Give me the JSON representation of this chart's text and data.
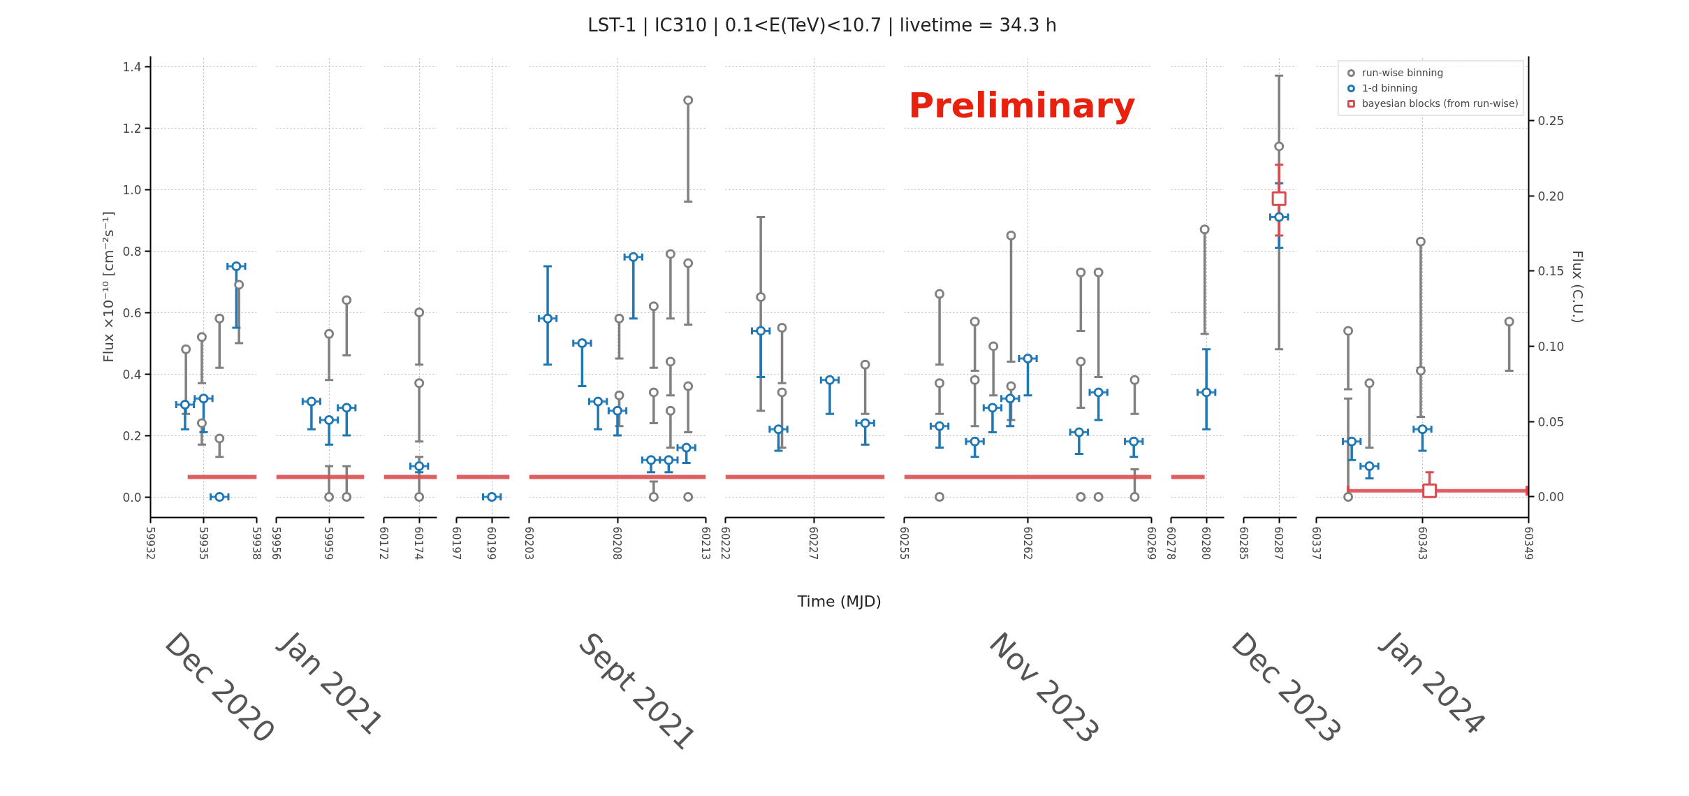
{
  "chart_data": [
    {
      "type": "scatter",
      "ylabel": "Flux ×10⁻¹⁰ [cm⁻²s⁻¹]",
      "annotations": [
        "Dec 2020"
      ],
      "xlim": [
        59932,
        59938
      ],
      "xticks": [
        59932,
        59935,
        59938
      ],
      "ylim": [
        -0.067,
        1.433
      ],
      "yticks": [
        {
          "value": 0,
          "label": "0.0"
        },
        {
          "value": 0.2,
          "label": "0.2"
        },
        {
          "value": 0.4,
          "label": "0.4"
        },
        {
          "value": 0.6,
          "label": "0.6"
        },
        {
          "value": 0.8,
          "label": "0.8"
        },
        {
          "value": 1.0,
          "label": "1.0"
        },
        {
          "value": 1.2,
          "label": "1.2"
        },
        {
          "value": 1.4,
          "label": "1.4"
        }
      ],
      "grid": true,
      "series": [
        {
          "color": "#808080",
          "marker": "circle",
          "x": [
            59934.0,
            59934.9,
            59934.9,
            59935.9,
            59935.9,
            59937.0
          ],
          "values": [
            0.48,
            0.52,
            0.24,
            0.58,
            0.19,
            0.69
          ],
          "errors": [
            [
              0.27,
              0.48
            ],
            [
              0.37,
              0.52
            ],
            [
              0.17,
              0.24
            ],
            [
              0.42,
              0.58
            ],
            [
              0.13,
              0.19
            ],
            [
              0.5,
              0.69
            ]
          ]
        },
        {
          "color": "#1f77b4",
          "marker": "circle",
          "x": [
            59933.95,
            59935.0,
            59935.9,
            59936.85
          ],
          "values": [
            0.3,
            0.32,
            0.0,
            0.75
          ],
          "errors": [
            [
              0.22,
              0.3
            ],
            [
              0.21,
              0.32
            ],
            null,
            [
              0.55,
              0.75
            ]
          ],
          "xerrors": [
            0.5,
            0.5,
            0.5,
            0.5
          ]
        },
        {
          "type": "line",
          "color": "#dc4c4e",
          "x": [
            59934.1,
            59938
          ],
          "values": [
            0.065,
            0.065
          ]
        }
      ]
    },
    {
      "type": "scatter",
      "annotations": [
        "Jan 2021"
      ],
      "xlim": [
        59956,
        59961
      ],
      "xticks": [
        59956,
        59959
      ],
      "ylim": [
        -0.067,
        1.433
      ],
      "yticks": [
        0,
        0.2,
        0.4,
        0.6,
        0.8,
        1.0,
        1.2,
        1.4
      ],
      "tick_labels": "x",
      "grid": true,
      "series": [
        {
          "color": "#808080",
          "marker": "circle",
          "x": [
            59959.0,
            59959.0,
            59960.0,
            59960.0
          ],
          "values": [
            0.53,
            0.0,
            0.64,
            0.0
          ],
          "errors": [
            [
              0.38,
              0.53
            ],
            [
              0,
              0.1
            ],
            [
              0.46,
              0.64
            ],
            [
              0,
              0.1
            ]
          ]
        },
        {
          "color": "#1f77b4",
          "marker": "circle",
          "x": [
            59958.0,
            59959.0,
            59960.0
          ],
          "values": [
            0.31,
            0.25,
            0.29
          ],
          "errors": [
            [
              0.22,
              0.31
            ],
            [
              0.17,
              0.25
            ],
            [
              0.2,
              0.29
            ]
          ],
          "xerrors": [
            0.5,
            0.5,
            0.5
          ]
        },
        {
          "type": "line",
          "color": "#dc4c4e",
          "x": [
            59956,
            59961
          ],
          "values": [
            0.065,
            0.065
          ]
        }
      ]
    },
    {
      "type": "scatter",
      "xlim": [
        60172,
        60175
      ],
      "xticks": [
        60172,
        60174
      ],
      "ylim": [
        -0.067,
        1.433
      ],
      "yticks": [
        0,
        0.2,
        0.4,
        0.6,
        0.8,
        1.0,
        1.2,
        1.4
      ],
      "tick_labels": "x",
      "grid": true,
      "series": [
        {
          "color": "#808080",
          "marker": "circle",
          "x": [
            60174.0,
            60174.0,
            60174.0
          ],
          "values": [
            0.6,
            0.37,
            0.0
          ],
          "errors": [
            [
              0.43,
              0.6
            ],
            [
              0.18,
              0.37
            ],
            [
              0,
              0.13
            ]
          ]
        },
        {
          "color": "#1f77b4",
          "marker": "circle",
          "x": [
            60174.0
          ],
          "values": [
            0.1
          ],
          "errors": [
            [
              0.08,
              0.1
            ]
          ],
          "xerrors": [
            0.5
          ]
        },
        {
          "type": "line",
          "color": "#dc4c4e",
          "x": [
            60172,
            60175
          ],
          "values": [
            0.065,
            0.065
          ]
        }
      ]
    },
    {
      "type": "scatter",
      "xlim": [
        60197,
        60200
      ],
      "xticks": [
        60197,
        60199
      ],
      "ylim": [
        -0.067,
        1.433
      ],
      "yticks": [
        0,
        0.2,
        0.4,
        0.6,
        0.8,
        1.0,
        1.2,
        1.4
      ],
      "tick_labels": "x",
      "grid": true,
      "series": [
        {
          "color": "#1f77b4",
          "marker": "circle",
          "x": [
            60199.0
          ],
          "values": [
            0.0
          ],
          "xerrors": [
            0.5
          ]
        },
        {
          "type": "line",
          "color": "#dc4c4e",
          "x": [
            60197,
            60200
          ],
          "values": [
            0.065,
            0.065
          ]
        }
      ]
    },
    {
      "type": "scatter",
      "annotations": [
        "Sept 2021"
      ],
      "xlim": [
        60203,
        60213
      ],
      "xticks": [
        60203,
        60208,
        60213
      ],
      "ylim": [
        -0.067,
        1.433
      ],
      "yticks": [
        0,
        0.2,
        0.4,
        0.6,
        0.8,
        1.0,
        1.2,
        1.4
      ],
      "tick_labels": "x",
      "grid": true,
      "series": [
        {
          "color": "#808080",
          "marker": "circle",
          "x": [
            60208.1,
            60208.1,
            60210.05,
            60210.05,
            60210.05,
            60211.0,
            60211.0,
            60211.0,
            60212.0,
            60212.0,
            60212.0,
            60212.0
          ],
          "values": [
            0.58,
            0.33,
            0.62,
            0.34,
            0.0,
            0.79,
            0.44,
            0.28,
            1.29,
            0.76,
            0.36,
            0.0
          ],
          "errors": [
            [
              0.45,
              0.58
            ],
            [
              0.23,
              0.33
            ],
            [
              0.42,
              0.62
            ],
            [
              0.24,
              0.34
            ],
            [
              0,
              0.05
            ],
            [
              0.58,
              0.79
            ],
            [
              0.33,
              0.44
            ],
            [
              0.16,
              0.28
            ],
            [
              0.96,
              1.29
            ],
            [
              0.56,
              0.76
            ],
            [
              0.21,
              0.36
            ],
            null
          ]
        },
        {
          "color": "#1f77b4",
          "marker": "circle",
          "x": [
            60204.05,
            60206.0,
            60206.9,
            60208.0,
            60208.9,
            60209.9,
            60210.9,
            60211.9
          ],
          "values": [
            0.58,
            0.5,
            0.31,
            0.28,
            0.78,
            0.12,
            0.12,
            0.16
          ],
          "errors": [
            [
              0.43,
              0.75
            ],
            [
              0.36,
              0.5
            ],
            [
              0.22,
              0.31
            ],
            [
              0.2,
              0.28
            ],
            [
              0.58,
              0.78
            ],
            [
              0.08,
              0.12
            ],
            [
              0.08,
              0.12
            ],
            [
              0.11,
              0.16
            ]
          ],
          "xerrors": [
            0.5,
            0.5,
            0.5,
            0.5,
            0.5,
            0.5,
            0.5,
            0.5
          ]
        },
        {
          "type": "line",
          "color": "#dc4c4e",
          "x": [
            60203,
            60213
          ],
          "values": [
            0.065,
            0.065
          ]
        }
      ]
    },
    {
      "type": "scatter",
      "title": "LST-1  |  IC310  |  0.1<E(TeV)<10.7  |  livetime = 34.3 h",
      "xlabel": "Time (MJD)",
      "xlim": [
        60222,
        60231
      ],
      "xticks": [
        60222,
        60227
      ],
      "ylim": [
        -0.067,
        1.433
      ],
      "yticks": [
        0,
        0.2,
        0.4,
        0.6,
        0.8,
        1.0,
        1.2,
        1.4
      ],
      "tick_labels": "x",
      "grid": true,
      "series": [
        {
          "color": "#808080",
          "marker": "circle",
          "x": [
            60224.0,
            60225.2,
            60225.2,
            60229.9
          ],
          "values": [
            0.65,
            0.55,
            0.34,
            0.43
          ],
          "errors": [
            [
              0.28,
              0.91
            ],
            [
              0.37,
              0.55
            ],
            [
              0.16,
              0.34
            ],
            [
              0.27,
              0.43
            ]
          ]
        },
        {
          "color": "#1f77b4",
          "marker": "circle",
          "x": [
            60224.0,
            60225.0,
            60227.9,
            60229.9
          ],
          "values": [
            0.54,
            0.22,
            0.38,
            0.24
          ],
          "errors": [
            [
              0.39,
              0.54
            ],
            [
              0.15,
              0.22
            ],
            [
              0.27,
              0.38
            ],
            [
              0.17,
              0.24
            ]
          ],
          "xerrors": [
            0.5,
            0.5,
            0.5,
            0.5
          ]
        },
        {
          "type": "line",
          "color": "#dc4c4e",
          "x": [
            60222,
            60231
          ],
          "values": [
            0.065,
            0.065
          ]
        }
      ]
    },
    {
      "type": "scatter",
      "annotations": [
        {
          "text": "Preliminary"
        },
        "Nov 2023"
      ],
      "xlim": [
        60255,
        60269
      ],
      "xticks": [
        60255,
        60262,
        60269
      ],
      "ylim": [
        -0.067,
        1.433
      ],
      "yticks": [
        0,
        0.2,
        0.4,
        0.6,
        0.8,
        1.0,
        1.2,
        1.4
      ],
      "tick_labels": "x",
      "grid": true,
      "series": [
        {
          "color": "#808080",
          "marker": "circle",
          "x": [
            60257.0,
            60257.0,
            60257.0,
            60259.0,
            60259.0,
            60260.05,
            60261.05,
            60261.05,
            60265.0,
            60265.0,
            60265.0,
            60266.0,
            60266.0,
            60268.05,
            60268.05
          ],
          "values": [
            0.66,
            0.37,
            0.0,
            0.57,
            0.38,
            0.49,
            0.85,
            0.36,
            0.73,
            0.44,
            0.0,
            0.73,
            0.0,
            0.38,
            0.0
          ],
          "errors": [
            [
              0.43,
              0.66
            ],
            [
              0.27,
              0.37
            ],
            null,
            [
              0.41,
              0.57
            ],
            [
              0.23,
              0.38
            ],
            [
              0.33,
              0.49
            ],
            [
              0.44,
              0.85
            ],
            [
              0.25,
              0.36
            ],
            [
              0.54,
              0.73
            ],
            [
              0.29,
              0.44
            ],
            null,
            [
              0.39,
              0.73
            ],
            null,
            [
              0.27,
              0.38
            ],
            [
              0,
              0.09
            ]
          ]
        },
        {
          "color": "#1f77b4",
          "marker": "circle",
          "x": [
            60257.0,
            60259.0,
            60260.0,
            60261.0,
            60262.0,
            60264.9,
            60266.0,
            60268.0
          ],
          "values": [
            0.23,
            0.18,
            0.29,
            0.32,
            0.45,
            0.21,
            0.34,
            0.18
          ],
          "errors": [
            [
              0.16,
              0.23
            ],
            [
              0.13,
              0.18
            ],
            [
              0.21,
              0.29
            ],
            [
              0.23,
              0.32
            ],
            [
              0.33,
              0.45
            ],
            [
              0.14,
              0.21
            ],
            [
              0.25,
              0.34
            ],
            [
              0.13,
              0.18
            ]
          ],
          "xerrors": [
            0.5,
            0.5,
            0.5,
            0.5,
            0.5,
            0.5,
            0.5,
            0.5
          ]
        },
        {
          "type": "line",
          "color": "#dc4c4e",
          "x": [
            60255,
            60269
          ],
          "values": [
            0.065,
            0.065
          ]
        }
      ]
    },
    {
      "type": "scatter",
      "xlim": [
        60278,
        60281
      ],
      "xticks": [
        60278,
        60280
      ],
      "ylim": [
        -0.067,
        1.433
      ],
      "yticks": [
        0,
        0.2,
        0.4,
        0.6,
        0.8,
        1.0,
        1.2,
        1.4
      ],
      "tick_labels": "x",
      "grid": true,
      "series": [
        {
          "color": "#808080",
          "marker": "circle",
          "x": [
            60279.9
          ],
          "values": [
            0.87
          ],
          "errors": [
            [
              0.53,
              0.87
            ]
          ]
        },
        {
          "color": "#1f77b4",
          "marker": "circle",
          "x": [
            60280.0
          ],
          "values": [
            0.34
          ],
          "errors": [
            [
              0.22,
              0.48
            ]
          ],
          "xerrors": [
            0.5
          ]
        },
        {
          "type": "line",
          "color": "#dc4c4e",
          "x": [
            60278,
            60279.9
          ],
          "values": [
            0.065,
            0.065
          ]
        }
      ]
    },
    {
      "type": "scatter",
      "annotations": [
        "Dec 2023"
      ],
      "xlim": [
        60285,
        60288
      ],
      "xticks": [
        60285,
        60287
      ],
      "ylim": [
        -0.067,
        1.433
      ],
      "yticks": [
        0,
        0.2,
        0.4,
        0.6,
        0.8,
        1.0,
        1.2,
        1.4
      ],
      "tick_labels": "x",
      "grid": true,
      "series": [
        {
          "color": "#808080",
          "marker": "circle",
          "x": [
            60287.0
          ],
          "values": [
            1.14
          ],
          "errors": [
            [
              0.48,
              1.37
            ]
          ]
        },
        {
          "color": "#1f77b4",
          "marker": "circle",
          "x": [
            60287.0
          ],
          "values": [
            0.91
          ],
          "errors": [
            [
              0.81,
              1.02
            ]
          ],
          "xerrors": [
            0.5
          ]
        },
        {
          "color": "#dc4c4e",
          "marker": "square",
          "x": [
            60287.0
          ],
          "values": [
            0.97
          ],
          "errors": [
            [
              0.85,
              1.08
            ]
          ]
        }
      ]
    },
    {
      "type": "scatter",
      "annotations": [
        "Jan 2024"
      ],
      "y2label": "Flux (C.U.)",
      "xlim": [
        60337,
        60349
      ],
      "xticks": [
        60337,
        60343,
        60349
      ],
      "ylim": [
        -0.067,
        1.433
      ],
      "yticks": [
        0,
        0.2,
        0.4,
        0.6,
        0.8,
        1.0,
        1.2,
        1.4
      ],
      "y2lim": [
        -0.0137,
        0.2926
      ],
      "y2ticks": [
        {
          "value": 0,
          "label": "0.00"
        },
        {
          "value": 0.05,
          "label": "0.05"
        },
        {
          "value": 0.1,
          "label": "0.10"
        },
        {
          "value": 0.15,
          "label": "0.15"
        },
        {
          "value": 0.2,
          "label": "0.20"
        },
        {
          "value": 0.25,
          "label": "0.25"
        }
      ],
      "tick_labels": "x",
      "grid": true,
      "legend": "top right",
      "series": [
        {
          "name": "run-wise binning",
          "color": "#808080",
          "marker": "circle",
          "x": [
            60338.8,
            60338.8,
            60340.0,
            60342.9,
            60342.9,
            60347.9
          ],
          "values": [
            0.54,
            0.0,
            0.37,
            0.83,
            0.41,
            0.57
          ],
          "errors": [
            [
              0.35,
              0.54
            ],
            [
              0,
              0.32
            ],
            [
              0.16,
              0.37
            ],
            [
              0.42,
              0.83
            ],
            [
              0.26,
              0.41
            ],
            [
              0.41,
              0.57
            ]
          ]
        },
        {
          "name": "1-d binning",
          "color": "#1f77b4",
          "marker": "circle",
          "x": [
            60339.0,
            60340.0,
            60343.0
          ],
          "values": [
            0.18,
            0.1,
            0.22
          ],
          "errors": [
            [
              0.12,
              0.18
            ],
            [
              0.06,
              0.1
            ],
            [
              0.15,
              0.22
            ]
          ],
          "xerrors": [
            0.5,
            0.5,
            0.5
          ]
        },
        {
          "name": "bayesian blocks (from run-wise)",
          "color": "#dc4c4e",
          "marker": "square",
          "x": [
            60343.4
          ],
          "values": [
            0.02
          ],
          "errors": [
            [
              0.02,
              0.08
            ]
          ],
          "xerrors": [
            [
              60338.8,
              60348.9
            ]
          ]
        }
      ]
    }
  ]
}
